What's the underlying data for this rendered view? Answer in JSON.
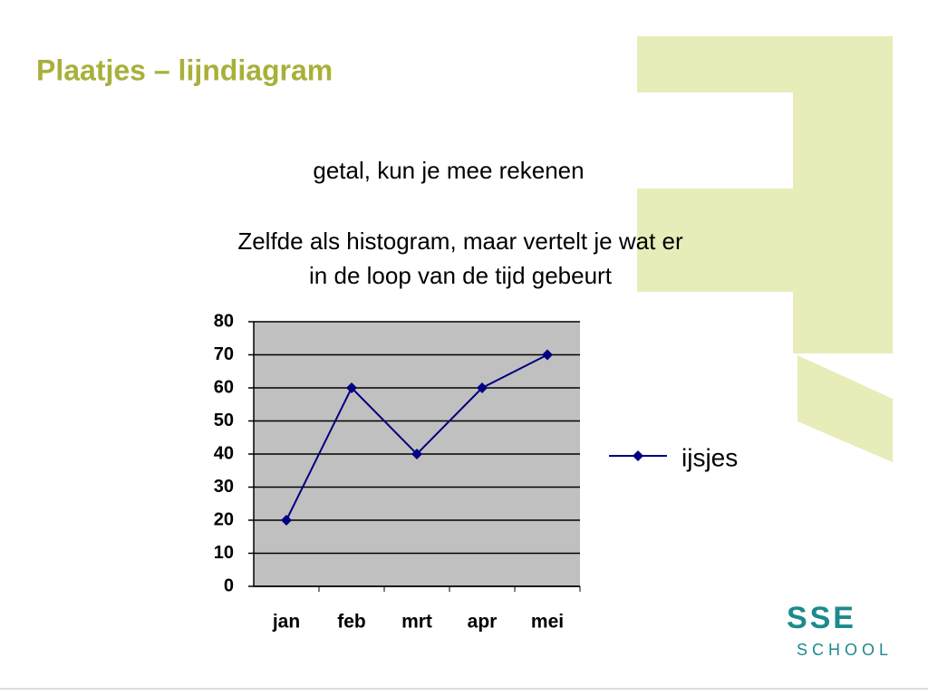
{
  "slide": {
    "title": "Plaatjes – lijndiagram",
    "lines": [
      "getal, kun je mee rekenen",
      "Zelfde als histogram, maar vertelt je wat er",
      "in de loop van de tijd gebeurt"
    ],
    "logo": [
      "SSE",
      "SCHOOL"
    ]
  },
  "chart_data": {
    "type": "line",
    "categories": [
      "jan",
      "feb",
      "mrt",
      "apr",
      "mei"
    ],
    "series": [
      {
        "name": "ijsjes",
        "color": "#000080",
        "values": [
          20,
          60,
          40,
          60,
          70
        ]
      }
    ],
    "ylim": [
      0,
      80
    ],
    "yticks": [
      0,
      10,
      20,
      30,
      40,
      50,
      60,
      70,
      80
    ],
    "grid": true,
    "legend": "right",
    "background": "#c0c0c0"
  }
}
